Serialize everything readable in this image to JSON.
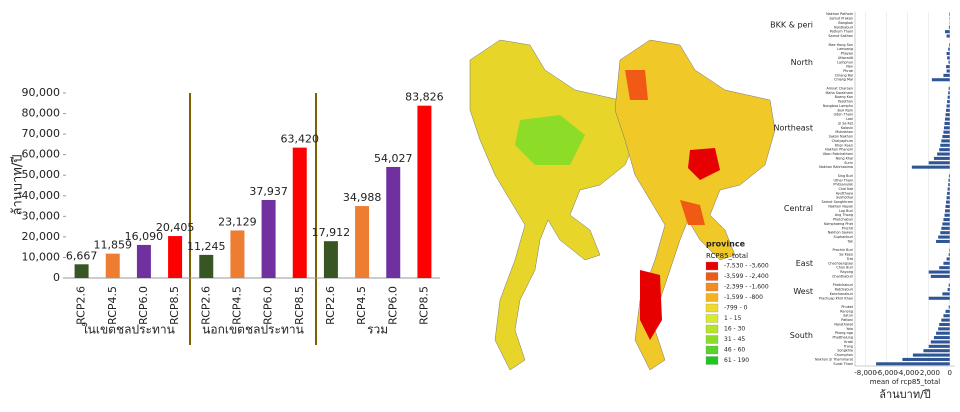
{
  "chart_data": [
    {
      "type": "grouped-bar",
      "y_label": "ล้านบาท/ปี",
      "colors": [
        "#375623",
        "#ed7d31",
        "#7030a0",
        "#ff0000"
      ],
      "groups": [
        {
          "name": "ในเขตชลประทาน",
          "categories": [
            "RCP2.6",
            "RCP4.5",
            "RCP6.0",
            "RCP8.5"
          ],
          "values": [
            6667,
            11859,
            16090,
            20405
          ],
          "value_labels": [
            "6,667",
            "11,859",
            "16,090",
            "20,405"
          ]
        },
        {
          "name": "นอกเขตชลประทาน",
          "categories": [
            "RCP2.6",
            "RCP4.5",
            "RCP6.0",
            "RCP8.5"
          ],
          "values": [
            11245,
            23129,
            37937,
            63420
          ],
          "value_labels": [
            "11,245",
            "23,129",
            "37,937",
            "63,420"
          ]
        },
        {
          "name": "รวม",
          "categories": [
            "RCP2.6",
            "RCP4.5",
            "RCP6.0",
            "RCP8.5"
          ],
          "values": [
            17912,
            34988,
            54027,
            83826
          ],
          "value_labels": [
            "17,912",
            "34,988",
            "54,027",
            "83,826"
          ]
        }
      ],
      "ylim": [
        0,
        90000
      ],
      "yticks": [
        0,
        {
          "value": 10000,
          "label": "10,000"
        },
        {
          "value": 20000,
          "label": "20,000"
        },
        {
          "value": 30000,
          "label": "30,000"
        },
        {
          "value": 40000,
          "label": "40,000"
        },
        {
          "value": 50000,
          "label": "50,000"
        },
        {
          "value": 60000,
          "label": "60,000"
        },
        {
          "value": 70000,
          "label": "70,000"
        },
        {
          "value": 80000,
          "label": "80,000"
        },
        {
          "value": 90000,
          "label": "90,000"
        }
      ]
    },
    {
      "type": "map",
      "legend_title": "province",
      "legend_subtitle": "RCP85_total",
      "legend_labels": [
        "-7,530 - -3,600",
        "-3,599 - -2,400",
        "-2,399 - -1,600",
        "-1,599 - -800",
        "-799 - 0",
        "1 - 15",
        "16 - 30",
        "31 - 45",
        "46 - 60",
        "61 - 190"
      ],
      "legend_colors": [
        "#e60000",
        "#f05a14",
        "#f58c1e",
        "#f5b41e",
        "#f0dc28",
        "#d7eb28",
        "#b4e628",
        "#8cdc28",
        "#5ad228",
        "#1ec81e"
      ]
    },
    {
      "type": "hbar",
      "x_label": "mean of rcp85_total",
      "x_sublabel": "ล้านบาท/ปี",
      "color": "#2f5597",
      "xlim": [
        -9000,
        500
      ],
      "xticks": [
        {
          "value": -8000,
          "label": "-8,000"
        },
        {
          "value": -6000,
          "label": "-6,000"
        },
        {
          "value": -4000,
          "label": "-4,000"
        },
        {
          "value": -2000,
          "label": "-2,000"
        },
        0
      ],
      "groups": [
        {
          "name": "BKK & peri",
          "categories": [
            "Nakhon Pathom",
            "Samut Prakan",
            "Bangkok",
            "Nonthaburi",
            "Pathum Thani",
            "Samut Sakhon"
          ],
          "values": [
            -50,
            -30,
            -20,
            -80,
            -450,
            -300
          ]
        },
        {
          "name": "North",
          "categories": [
            "Mae Hong Son",
            "Lampang",
            "Phayao",
            "Uttaradit",
            "Lamphun",
            "Nan",
            "Phrae",
            "Chiang Rai",
            "Chiang Mai"
          ],
          "values": [
            -60,
            -150,
            -300,
            -250,
            -120,
            -350,
            -300,
            -600,
            -1700
          ]
        },
        {
          "name": "Northeast",
          "categories": [
            "Amnat Charoen",
            "Maha Sarakham",
            "Bueng Kan",
            "Yasothon",
            "Nongbua Lamphu",
            "Buri Ram",
            "Udon Thani",
            "Loei",
            "Si Sa Ket",
            "Kalasin",
            "Mukdahan",
            "Sakon Nakhon",
            "Chaiyaphum",
            "Khon Kaen",
            "Nakhon Phanom",
            "Ubon Ratchathani",
            "Nong Khai",
            "Surin",
            "Nakhon Ratchasima"
          ],
          "values": [
            -100,
            -150,
            -200,
            -250,
            -300,
            -350,
            -400,
            -450,
            -500,
            -550,
            -600,
            -700,
            -800,
            -900,
            -1000,
            -1200,
            -1500,
            -2000,
            -3600
          ]
        },
        {
          "name": "Central",
          "categories": [
            "Sing Buri",
            "Uthai Thani",
            "Phitsanulok",
            "Chai Nat",
            "Ayutthaya",
            "Sukhothai",
            "Samut Songkhram",
            "Nakhon Nayok",
            "Lop Buri",
            "Ang Thong",
            "Phetchabun",
            "Kamphaeng Phet",
            "Phichit",
            "Nakhon Sawan",
            "Suphanburi",
            "Tak"
          ],
          "values": [
            -80,
            -120,
            -150,
            -200,
            -250,
            -300,
            -350,
            -400,
            -450,
            -500,
            -600,
            -700,
            -800,
            -900,
            -1100,
            -1300
          ]
        },
        {
          "name": "East",
          "categories": [
            "Prachin Buri",
            "Sa Kaeo",
            "Trat",
            "Chachoengsao",
            "Chon Buri",
            "Rayong",
            "Chanthaburi"
          ],
          "values": [
            -50,
            -100,
            -300,
            -600,
            -1000,
            -2000,
            -1800
          ]
        },
        {
          "name": "West",
          "categories": [
            "Phetchaburi",
            "Ratchaburi",
            "Kanchanaburi",
            "Prachuap Khiri Khan"
          ],
          "values": [
            -100,
            -200,
            -700,
            -2000
          ]
        },
        {
          "name": "South",
          "categories": [
            "Phuket",
            "Ranong",
            "Satun",
            "Pattani",
            "Narathiwat",
            "Yala",
            "Phang-nga",
            "Phatthalung",
            "Krabi",
            "Trang",
            "Songkhla",
            "Chumphon",
            "Nakhon Si Thammarat",
            "Surat Thani"
          ],
          "values": [
            -100,
            -400,
            -600,
            -800,
            -1000,
            -1100,
            -1300,
            -1500,
            -1800,
            -2000,
            -2500,
            -3500,
            -4500,
            -7000
          ]
        }
      ]
    }
  ]
}
